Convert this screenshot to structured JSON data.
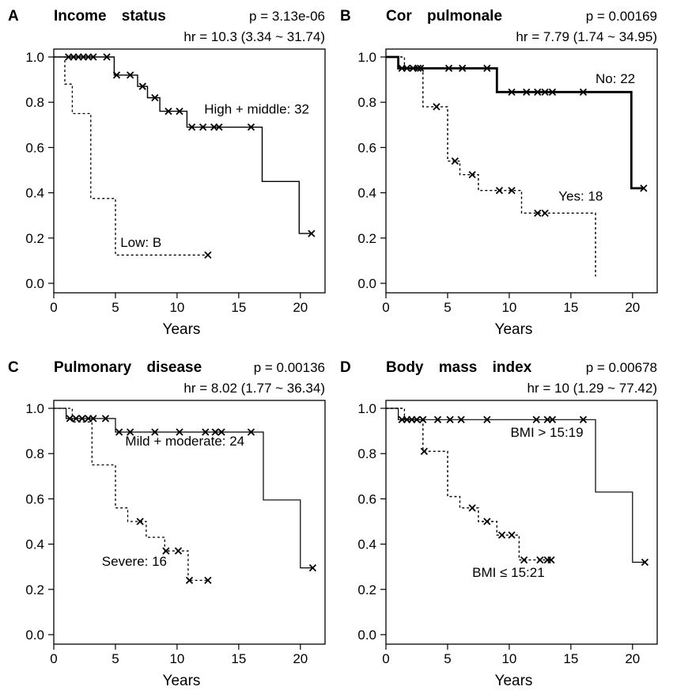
{
  "chart_data": [
    {
      "type": "line",
      "panel_letter": "A",
      "title": "Income status",
      "p_text": "p = 3.13e-06",
      "hr_text": "hr = 10.3 (3.34 ~ 31.74)",
      "xlabel": "Years",
      "ylabel": "",
      "xlim": [
        0,
        22
      ],
      "ylim": [
        0,
        1.0
      ],
      "xticks": [
        0,
        5,
        10,
        15,
        20
      ],
      "yticks": [
        "0.0",
        "0.2",
        "0.4",
        "0.6",
        "0.8",
        "1.0"
      ],
      "series": [
        {
          "name": "High + middle: 32",
          "style": "solid",
          "width": 1.4,
          "steps": [
            [
              0,
              1.0
            ],
            [
              4.9,
              1.0
            ],
            [
              4.9,
              0.92
            ],
            [
              6.8,
              0.92
            ],
            [
              6.8,
              0.87
            ],
            [
              7.6,
              0.87
            ],
            [
              7.6,
              0.82
            ],
            [
              8.6,
              0.82
            ],
            [
              8.6,
              0.76
            ],
            [
              10.8,
              0.76
            ],
            [
              10.8,
              0.69
            ],
            [
              16.9,
              0.69
            ],
            [
              16.9,
              0.45
            ],
            [
              19.9,
              0.45
            ],
            [
              19.9,
              0.22
            ],
            [
              20.9,
              0.22
            ]
          ],
          "censor": [
            [
              1.2,
              1.0
            ],
            [
              1.6,
              1.0
            ],
            [
              2.0,
              1.0
            ],
            [
              2.4,
              1.0
            ],
            [
              2.8,
              1.0
            ],
            [
              3.2,
              1.0
            ],
            [
              4.3,
              1.0
            ],
            [
              5.1,
              0.92
            ],
            [
              6.2,
              0.92
            ],
            [
              7.2,
              0.87
            ],
            [
              8.2,
              0.82
            ],
            [
              9.3,
              0.76
            ],
            [
              10.2,
              0.76
            ],
            [
              11.2,
              0.69
            ],
            [
              12.1,
              0.69
            ],
            [
              13.0,
              0.69
            ],
            [
              13.4,
              0.69
            ],
            [
              16.0,
              0.69
            ],
            [
              20.9,
              0.22
            ]
          ]
        },
        {
          "name": "Low: B",
          "style": "dotted",
          "width": 1.3,
          "steps": [
            [
              0,
              1.0
            ],
            [
              0.9,
              1.0
            ],
            [
              0.9,
              0.88
            ],
            [
              1.5,
              0.88
            ],
            [
              1.5,
              0.75
            ],
            [
              3.0,
              0.75
            ],
            [
              3.0,
              0.375
            ],
            [
              5.0,
              0.375
            ],
            [
              5.0,
              0.125
            ],
            [
              12.5,
              0.125
            ]
          ],
          "censor": [
            [
              12.5,
              0.125
            ]
          ]
        }
      ],
      "labels": [
        {
          "text": "High + middle: 32",
          "x": 12.2,
          "y": 0.75
        },
        {
          "text": "Low: B",
          "x": 5.4,
          "y": 0.16
        }
      ]
    },
    {
      "type": "line",
      "panel_letter": "B",
      "title": "Cor pulmonale",
      "p_text": "p = 0.00169",
      "hr_text": "hr = 7.79 (1.74 ~ 34.95)",
      "xlabel": "Years",
      "ylabel": "",
      "xlim": [
        0,
        22
      ],
      "ylim": [
        0,
        1.0
      ],
      "xticks": [
        0,
        5,
        10,
        15,
        20
      ],
      "yticks": [
        "0.0",
        "0.2",
        "0.4",
        "0.6",
        "0.8",
        "1.0"
      ],
      "series": [
        {
          "name": "No: 22",
          "style": "solid",
          "width": 2.8,
          "steps": [
            [
              0,
              1.0
            ],
            [
              1.0,
              1.0
            ],
            [
              1.0,
              0.95
            ],
            [
              9.0,
              0.95
            ],
            [
              9.0,
              0.845
            ],
            [
              19.9,
              0.845
            ],
            [
              19.9,
              0.42
            ],
            [
              20.9,
              0.42
            ]
          ],
          "censor": [
            [
              1.3,
              0.95
            ],
            [
              1.7,
              0.95
            ],
            [
              2.2,
              0.95
            ],
            [
              2.6,
              0.95
            ],
            [
              5.1,
              0.95
            ],
            [
              6.2,
              0.95
            ],
            [
              8.2,
              0.95
            ],
            [
              10.2,
              0.845
            ],
            [
              11.4,
              0.845
            ],
            [
              12.3,
              0.845
            ],
            [
              12.9,
              0.845
            ],
            [
              13.5,
              0.845
            ],
            [
              16.0,
              0.845
            ],
            [
              20.9,
              0.42
            ]
          ]
        },
        {
          "name": "Yes: 18",
          "style": "dotted",
          "width": 1.4,
          "steps": [
            [
              0,
              1.0
            ],
            [
              1.5,
              1.0
            ],
            [
              1.5,
              0.95
            ],
            [
              3.0,
              0.95
            ],
            [
              3.0,
              0.78
            ],
            [
              5.0,
              0.78
            ],
            [
              5.0,
              0.54
            ],
            [
              6.0,
              0.54
            ],
            [
              6.0,
              0.48
            ],
            [
              7.5,
              0.48
            ],
            [
              7.5,
              0.41
            ],
            [
              11.0,
              0.41
            ],
            [
              11.0,
              0.31
            ],
            [
              17.0,
              0.31
            ],
            [
              17.0,
              0.03
            ]
          ],
          "censor": [
            [
              2.8,
              0.95
            ],
            [
              4.1,
              0.78
            ],
            [
              5.6,
              0.54
            ],
            [
              7.0,
              0.48
            ],
            [
              9.2,
              0.41
            ],
            [
              10.2,
              0.41
            ],
            [
              12.3,
              0.31
            ],
            [
              12.9,
              0.31
            ]
          ]
        }
      ],
      "labels": [
        {
          "text": "No: 22",
          "x": 17.0,
          "y": 0.885
        },
        {
          "text": "Yes: 18",
          "x": 14.0,
          "y": 0.365
        }
      ]
    },
    {
      "type": "line",
      "panel_letter": "C",
      "title": "Pulmonary disease",
      "p_text": "p = 0.00136",
      "hr_text": "hr = 8.02 (1.77 ~ 36.34)",
      "xlabel": "Years",
      "ylabel": "",
      "xlim": [
        0,
        22
      ],
      "ylim": [
        0,
        1.0
      ],
      "xticks": [
        0,
        5,
        10,
        15,
        20
      ],
      "yticks": [
        "0.0",
        "0.2",
        "0.4",
        "0.6",
        "0.8",
        "1.0"
      ],
      "series": [
        {
          "name": "Mild + moderate: 24",
          "style": "solid",
          "width": 1.2,
          "steps": [
            [
              0,
              1.0
            ],
            [
              1.0,
              1.0
            ],
            [
              1.0,
              0.955
            ],
            [
              5.0,
              0.955
            ],
            [
              5.0,
              0.895
            ],
            [
              17.0,
              0.895
            ],
            [
              17.0,
              0.595
            ],
            [
              20.0,
              0.595
            ],
            [
              20.0,
              0.295
            ],
            [
              21.0,
              0.295
            ]
          ],
          "censor": [
            [
              1.3,
              0.955
            ],
            [
              1.8,
              0.955
            ],
            [
              2.3,
              0.955
            ],
            [
              2.8,
              0.955
            ],
            [
              3.2,
              0.955
            ],
            [
              4.2,
              0.955
            ],
            [
              5.3,
              0.895
            ],
            [
              6.2,
              0.895
            ],
            [
              8.2,
              0.895
            ],
            [
              10.2,
              0.895
            ],
            [
              12.3,
              0.895
            ],
            [
              13.1,
              0.895
            ],
            [
              13.6,
              0.895
            ],
            [
              16.0,
              0.895
            ],
            [
              21.0,
              0.295
            ]
          ]
        },
        {
          "name": "Severe: 16",
          "style": "dotted",
          "width": 1.3,
          "steps": [
            [
              0,
              1.0
            ],
            [
              1.5,
              1.0
            ],
            [
              1.5,
              0.94
            ],
            [
              3.1,
              0.94
            ],
            [
              3.1,
              0.75
            ],
            [
              5.0,
              0.75
            ],
            [
              5.0,
              0.56
            ],
            [
              6.0,
              0.56
            ],
            [
              6.0,
              0.5
            ],
            [
              7.5,
              0.5
            ],
            [
              7.5,
              0.43
            ],
            [
              9.0,
              0.43
            ],
            [
              9.0,
              0.37
            ],
            [
              10.9,
              0.37
            ],
            [
              10.9,
              0.24
            ],
            [
              12.5,
              0.24
            ]
          ],
          "censor": [
            [
              7.0,
              0.5
            ],
            [
              9.1,
              0.37
            ],
            [
              10.1,
              0.37
            ],
            [
              11.0,
              0.24
            ],
            [
              12.5,
              0.24
            ]
          ]
        }
      ],
      "labels": [
        {
          "text": "Mild + moderate: 24",
          "x": 5.8,
          "y": 0.835
        },
        {
          "text": "Severe: 16",
          "x": 3.9,
          "y": 0.305
        }
      ]
    },
    {
      "type": "line",
      "panel_letter": "D",
      "title": "Body mass index",
      "p_text": "p = 0.00678",
      "hr_text": "hr = 10 (1.29 ~ 77.42)",
      "xlabel": "Years",
      "ylabel": "",
      "xlim": [
        0,
        22
      ],
      "ylim": [
        0,
        1.0
      ],
      "xticks": [
        0,
        5,
        10,
        15,
        20
      ],
      "yticks": [
        "0.0",
        "0.2",
        "0.4",
        "0.6",
        "0.8",
        "1.0"
      ],
      "series": [
        {
          "name": "BMI > 15:19",
          "style": "solid",
          "width": 1.2,
          "steps": [
            [
              0,
              1.0
            ],
            [
              1.0,
              1.0
            ],
            [
              1.0,
              0.95
            ],
            [
              17.0,
              0.95
            ],
            [
              17.0,
              0.63
            ],
            [
              20.0,
              0.63
            ],
            [
              20.0,
              0.32
            ],
            [
              21.0,
              0.32
            ]
          ],
          "censor": [
            [
              1.3,
              0.95
            ],
            [
              1.7,
              0.95
            ],
            [
              2.1,
              0.95
            ],
            [
              2.5,
              0.95
            ],
            [
              3.0,
              0.95
            ],
            [
              4.2,
              0.95
            ],
            [
              5.2,
              0.95
            ],
            [
              6.1,
              0.95
            ],
            [
              8.2,
              0.95
            ],
            [
              12.2,
              0.95
            ],
            [
              13.1,
              0.95
            ],
            [
              13.5,
              0.95
            ],
            [
              16.0,
              0.95
            ],
            [
              21.0,
              0.32
            ]
          ]
        },
        {
          "name": "BMI ≤ 15:21",
          "style": "dotted",
          "width": 1.4,
          "steps": [
            [
              0,
              1.0
            ],
            [
              1.5,
              1.0
            ],
            [
              1.5,
              0.95
            ],
            [
              3.0,
              0.95
            ],
            [
              3.0,
              0.81
            ],
            [
              5.0,
              0.81
            ],
            [
              5.0,
              0.61
            ],
            [
              6.0,
              0.61
            ],
            [
              6.0,
              0.56
            ],
            [
              7.5,
              0.56
            ],
            [
              7.5,
              0.5
            ],
            [
              9.0,
              0.5
            ],
            [
              9.0,
              0.44
            ],
            [
              10.8,
              0.44
            ],
            [
              10.8,
              0.33
            ],
            [
              13.4,
              0.33
            ]
          ],
          "censor": [
            [
              3.1,
              0.81
            ],
            [
              7.0,
              0.56
            ],
            [
              8.2,
              0.5
            ],
            [
              9.4,
              0.44
            ],
            [
              10.2,
              0.44
            ],
            [
              11.2,
              0.33
            ],
            [
              12.5,
              0.33
            ],
            [
              13.1,
              0.33
            ],
            [
              13.4,
              0.33
            ]
          ]
        }
      ],
      "labels": [
        {
          "text": "BMI > 15:19",
          "x": 10.1,
          "y": 0.875
        },
        {
          "text": "BMI ≤ 15:21",
          "x": 7.0,
          "y": 0.255
        }
      ]
    }
  ]
}
